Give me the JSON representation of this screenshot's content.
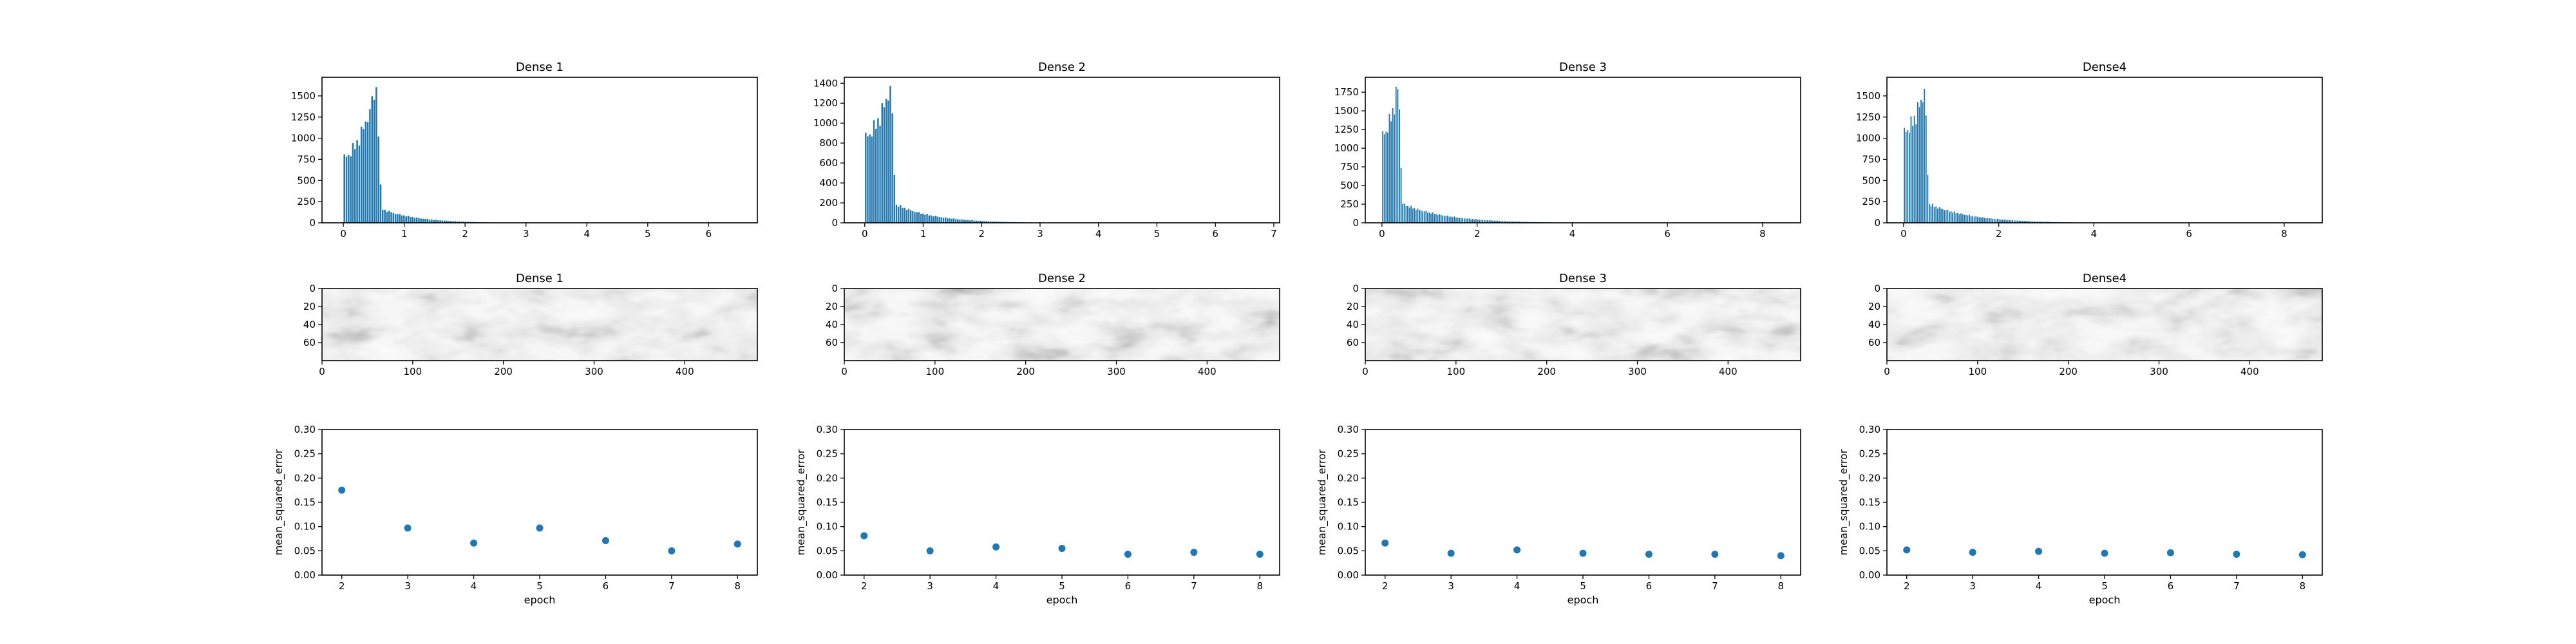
{
  "chart_data": [
    {
      "type": "bar",
      "title": "Dense 1",
      "xlabel": "",
      "ylabel": "",
      "xlim": [
        -0.35,
        6.8
      ],
      "ylim": [
        0,
        1720
      ],
      "xticks": [
        0,
        1,
        2,
        3,
        4,
        5,
        6
      ],
      "yticks": [
        0,
        250,
        500,
        750,
        1000,
        1250,
        1500
      ],
      "profile": {
        "start": 0.0,
        "peak_x": 0.55,
        "start_val": 780,
        "peak_val": 1620,
        "drop_x": 0.62,
        "drop_val": 170,
        "tail_end": 2.6
      }
    },
    {
      "type": "bar",
      "title": "Dense 2",
      "xlabel": "",
      "ylabel": "",
      "xlim": [
        -0.35,
        7.1
      ],
      "ylim": [
        0,
        1460
      ],
      "xticks": [
        0,
        1,
        2,
        3,
        4,
        5,
        6,
        7
      ],
      "yticks": [
        0,
        200,
        400,
        600,
        800,
        1000,
        1200,
        1400
      ],
      "profile": {
        "start": 0.0,
        "peak_x": 0.45,
        "start_val": 870,
        "peak_val": 1390,
        "drop_x": 0.52,
        "drop_val": 190,
        "tail_end": 2.8
      }
    },
    {
      "type": "bar",
      "title": "Dense 3",
      "xlabel": "",
      "ylabel": "",
      "xlim": [
        -0.35,
        8.8
      ],
      "ylim": [
        0,
        1950
      ],
      "xticks": [
        0,
        2,
        4,
        6,
        8
      ],
      "yticks": [
        0,
        250,
        500,
        750,
        1000,
        1250,
        1500,
        1750
      ],
      "profile": {
        "start": 0.0,
        "peak_x": 0.35,
        "start_val": 1180,
        "peak_val": 1870,
        "drop_x": 0.42,
        "drop_val": 260,
        "tail_end": 3.6
      }
    },
    {
      "type": "bar",
      "title": "Dense4",
      "xlabel": "",
      "ylabel": "",
      "xlim": [
        -0.35,
        8.8
      ],
      "ylim": [
        0,
        1720
      ],
      "xticks": [
        0,
        2,
        4,
        6,
        8
      ],
      "yticks": [
        0,
        250,
        500,
        750,
        1000,
        1250,
        1500
      ],
      "profile": {
        "start": 0.0,
        "peak_x": 0.45,
        "start_val": 1080,
        "peak_val": 1600,
        "drop_x": 0.52,
        "drop_val": 230,
        "tail_end": 3.6
      }
    },
    {
      "type": "heatmap",
      "title": "Dense 1",
      "xlim": [
        0,
        480
      ],
      "ylim": [
        80,
        0
      ],
      "xticks": [
        0,
        100,
        200,
        300,
        400
      ],
      "yticks": [
        0,
        20,
        40,
        60
      ]
    },
    {
      "type": "heatmap",
      "title": "Dense 2",
      "xlim": [
        0,
        480
      ],
      "ylim": [
        80,
        0
      ],
      "xticks": [
        0,
        100,
        200,
        300,
        400
      ],
      "yticks": [
        0,
        20,
        40,
        60
      ]
    },
    {
      "type": "heatmap",
      "title": "Dense 3",
      "xlim": [
        0,
        480
      ],
      "ylim": [
        80,
        0
      ],
      "xticks": [
        0,
        100,
        200,
        300,
        400
      ],
      "yticks": [
        0,
        20,
        40,
        60
      ]
    },
    {
      "type": "heatmap",
      "title": "Dense4",
      "xlim": [
        0,
        480
      ],
      "ylim": [
        80,
        0
      ],
      "xticks": [
        0,
        100,
        200,
        300,
        400
      ],
      "yticks": [
        0,
        20,
        40,
        60
      ]
    },
    {
      "type": "scatter",
      "title": "",
      "xlabel": "epoch",
      "ylabel": "mean_squared_error",
      "xlim": [
        1.7,
        8.3
      ],
      "ylim": [
        0,
        0.3
      ],
      "xticks": [
        2,
        3,
        4,
        5,
        6,
        7,
        8
      ],
      "yticks": [
        0.0,
        0.05,
        0.1,
        0.15,
        0.2,
        0.25,
        0.3
      ],
      "x": [
        2,
        3,
        4,
        5,
        6,
        7,
        8
      ],
      "y": [
        0.175,
        0.097,
        0.066,
        0.097,
        0.071,
        0.05,
        0.064
      ]
    },
    {
      "type": "scatter",
      "title": "",
      "xlabel": "epoch",
      "ylabel": "mean_squared_error",
      "xlim": [
        1.7,
        8.3
      ],
      "ylim": [
        0,
        0.3
      ],
      "xticks": [
        2,
        3,
        4,
        5,
        6,
        7,
        8
      ],
      "yticks": [
        0.0,
        0.05,
        0.1,
        0.15,
        0.2,
        0.25,
        0.3
      ],
      "x": [
        2,
        3,
        4,
        5,
        6,
        7,
        8
      ],
      "y": [
        0.081,
        0.05,
        0.058,
        0.055,
        0.043,
        0.047,
        0.043
      ]
    },
    {
      "type": "scatter",
      "title": "",
      "xlabel": "epoch",
      "ylabel": "mean_squared_error",
      "xlim": [
        1.7,
        8.3
      ],
      "ylim": [
        0,
        0.3
      ],
      "xticks": [
        2,
        3,
        4,
        5,
        6,
        7,
        8
      ],
      "yticks": [
        0.0,
        0.05,
        0.1,
        0.15,
        0.2,
        0.25,
        0.3
      ],
      "x": [
        2,
        3,
        4,
        5,
        6,
        7,
        8
      ],
      "y": [
        0.066,
        0.045,
        0.052,
        0.045,
        0.043,
        0.043,
        0.04
      ]
    },
    {
      "type": "scatter",
      "title": "",
      "xlabel": "epoch",
      "ylabel": "mean_squared_error",
      "xlim": [
        1.7,
        8.3
      ],
      "ylim": [
        0,
        0.3
      ],
      "xticks": [
        2,
        3,
        4,
        5,
        6,
        7,
        8
      ],
      "yticks": [
        0.0,
        0.05,
        0.1,
        0.15,
        0.2,
        0.25,
        0.3
      ],
      "x": [
        2,
        3,
        4,
        5,
        6,
        7,
        8
      ],
      "y": [
        0.052,
        0.047,
        0.049,
        0.045,
        0.046,
        0.043,
        0.042
      ]
    }
  ],
  "colors": {
    "bar": "#1f77b4",
    "bar_edge": "#ffffff",
    "point": "#1f77b4",
    "axis": "#000000"
  }
}
